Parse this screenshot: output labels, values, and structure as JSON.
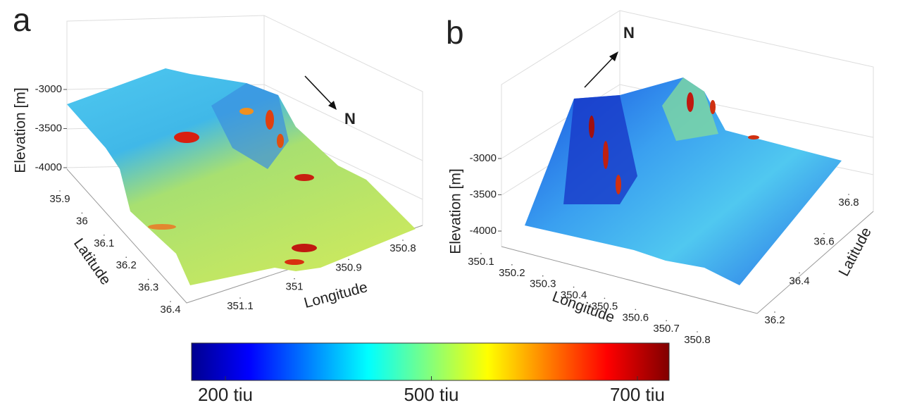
{
  "chart_data": [
    {
      "type": "surface",
      "panel_label": "a",
      "zlabel": "Elevation [m]",
      "ylabel": "Latitude",
      "xlabel": "Longitude",
      "annotation": "N",
      "zlim": [
        -4000,
        -3000
      ],
      "zticks": [
        -3000,
        -3500,
        -4000
      ],
      "ylim": [
        35.9,
        36.4
      ],
      "yticks": [
        35.9,
        36,
        36.1,
        36.2,
        36.3,
        36.4
      ],
      "xlim": [
        351.1,
        350.8
      ],
      "xticks": [
        351.1,
        351,
        350.9,
        350.8
      ]
    },
    {
      "type": "surface",
      "panel_label": "b",
      "zlabel": "Elevation [m]",
      "ylabel": "Latitude",
      "xlabel": "Longitude",
      "annotation": "N",
      "zlim": [
        -4000,
        -3000
      ],
      "zticks": [
        -3000,
        -3500,
        -4000
      ],
      "ylim": [
        36.2,
        36.8
      ],
      "yticks": [
        36.2,
        36.4,
        36.6,
        36.8
      ],
      "xlim": [
        350.1,
        350.8
      ],
      "xticks": [
        350.1,
        350.2,
        350.3,
        350.4,
        350.5,
        350.6,
        350.7,
        350.8
      ]
    },
    {
      "type": "colorbar",
      "colormap": "jet",
      "ticks": [
        {
          "value": 200,
          "label": "200 tiu"
        },
        {
          "value": 500,
          "label": "500 tiu"
        },
        {
          "value": 700,
          "label": "700 tiu"
        }
      ]
    }
  ]
}
